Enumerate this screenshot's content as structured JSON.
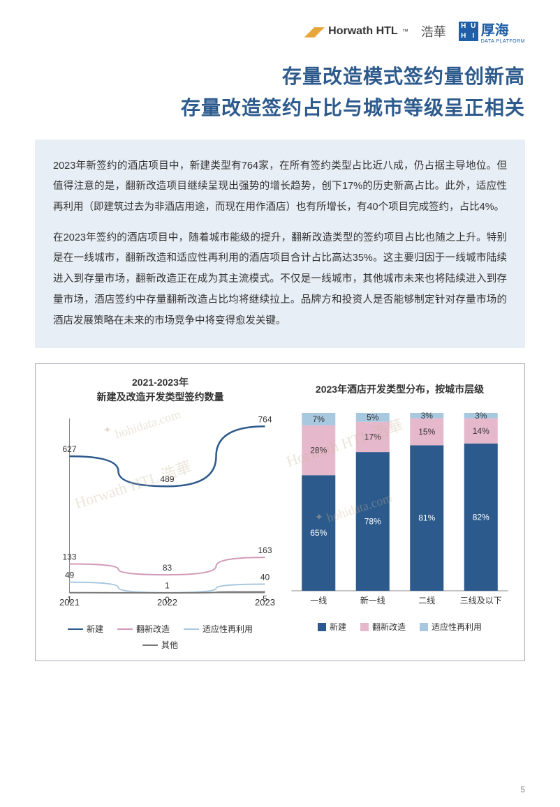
{
  "header": {
    "horwath": "Horwath HTL",
    "haohua": "浩華",
    "houhai_sq": [
      "H",
      "U",
      "H",
      "I"
    ],
    "houhai_txt": "厚海",
    "houhai_sub": "DATA PLATFORM"
  },
  "title": {
    "line1": "存量改造模式签约量创新高",
    "line2": "存量改造签约占比与城市等级呈正相关"
  },
  "body": {
    "p1": "2023年新签约的酒店项目中，新建类型有764家，在所有签约类型占比近八成，仍占据主导地位。但值得注意的是，翻新改造项目继续呈现出强势的增长趋势，创下17%的历史新高占比。此外，适应性再利用（即建筑过去为非酒店用途，而现在用作酒店）也有所增长，有40个项目完成签约，占比4%。",
    "p2": "在2023年签约的酒店项目中，随着城市能级的提升，翻新改造类型的签约项目占比也随之上升。特别是在一线城市，翻新改造和适应性再利用的酒店项目合计占比高达35%。这主要归因于一线城市陆续进入到存量市场，翻新改造正在成为其主流模式。不仅是一线城市，其他城市未来也将陆续进入到存量市场，酒店签约中存量翻新改造占比均将继续拉上。品牌方和投资人是否能够制定针对存量市场的酒店发展策略在未来的市场竞争中将变得愈发关键。"
  },
  "line_chart": {
    "title_l1": "2021-2023年",
    "title_l2": "新建及改造开发类型签约数量",
    "years": [
      "2021",
      "2022",
      "2023"
    ],
    "ymax": 800,
    "series": [
      {
        "name": "新建",
        "color": "#2d5a8c",
        "values": [
          627,
          489,
          764
        ],
        "width": 2.5
      },
      {
        "name": "翻新改造",
        "color": "#d298b8",
        "values": [
          133,
          83,
          163
        ],
        "width": 2
      },
      {
        "name": "适应性再利用",
        "color": "#a8c8e0",
        "values": [
          49,
          1,
          40
        ],
        "width": 2
      },
      {
        "name": "其他",
        "color": "#7a7a7a",
        "values": [
          1,
          0,
          5
        ],
        "width": 2
      }
    ],
    "legend": [
      {
        "label": "新建",
        "color": "#2d5a8c"
      },
      {
        "label": "翻新改造",
        "color": "#d298b8"
      },
      {
        "label": "适应性再利用",
        "color": "#a8c8e0"
      },
      {
        "label": "其他",
        "color": "#7a7a7a"
      }
    ]
  },
  "bar_chart": {
    "title": "2023年酒店开发类型分布，按城市层级",
    "categories": [
      "一线",
      "新一线",
      "二线",
      "三线及以下"
    ],
    "colors": {
      "new": "#2d5a8c",
      "renov": "#e6b8cc",
      "adapt": "#a8c8e0"
    },
    "stacks": [
      {
        "new": 65,
        "renov": 28,
        "adapt": 7
      },
      {
        "new": 78,
        "renov": 17,
        "adapt": 5
      },
      {
        "new": 81,
        "renov": 15,
        "adapt": 3
      },
      {
        "new": 82,
        "renov": 14,
        "adapt": 3
      }
    ],
    "legend": [
      {
        "label": "新建",
        "color": "#2d5a8c"
      },
      {
        "label": "翻新改造",
        "color": "#e6b8cc"
      },
      {
        "label": "适应性再利用",
        "color": "#a8c8e0"
      }
    ]
  },
  "watermarks": {
    "w1": "Horwath HTL 浩華",
    "w2": "hohidata.com",
    "w3": "Horwath HTL 浩華",
    "w4": "hohidata.com"
  },
  "page_number": "5"
}
